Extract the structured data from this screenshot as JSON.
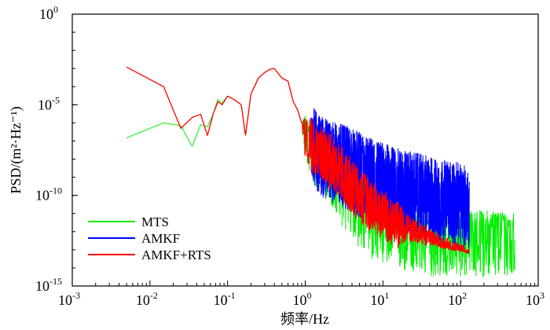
{
  "chart_data": {
    "type": "line",
    "title": "",
    "xlabel": "频率/Hz",
    "ylabel": "PSD/(m²·Hz⁻¹)",
    "xscale": "log",
    "yscale": "log",
    "xlim": [
      0.001,
      1000
    ],
    "ylim": [
      1e-15,
      1
    ],
    "x_ticks": [
      {
        "value": 0.001,
        "base": "10",
        "exp": "-3"
      },
      {
        "value": 0.01,
        "base": "10",
        "exp": "-2"
      },
      {
        "value": 0.1,
        "base": "10",
        "exp": "-1"
      },
      {
        "value": 1,
        "base": "10",
        "exp": "0"
      },
      {
        "value": 10,
        "base": "10",
        "exp": "1"
      },
      {
        "value": 100,
        "base": "10",
        "exp": "2"
      },
      {
        "value": 1000,
        "base": "10",
        "exp": "3"
      }
    ],
    "y_ticks": [
      {
        "value": 1e-15,
        "base": "10",
        "exp": "-15"
      },
      {
        "value": 1e-10,
        "base": "10",
        "exp": "-10"
      },
      {
        "value": 1e-05,
        "base": "10",
        "exp": "-5"
      },
      {
        "value": 1,
        "base": "10",
        "exp": "0"
      }
    ],
    "legend_position": "bottom-left",
    "series": [
      {
        "name": "MTS",
        "color": "#00ee00",
        "x": [
          0.005,
          0.015,
          0.025,
          0.035,
          0.045,
          0.055,
          0.065,
          0.075,
          0.085,
          0.1,
          0.12,
          0.15,
          0.17,
          0.2,
          0.25,
          0.3,
          0.35,
          0.4,
          0.5,
          0.6,
          0.7,
          0.8,
          0.9,
          1.0,
          1.2,
          1.5,
          2,
          3,
          4,
          5,
          7,
          10,
          15,
          20,
          30,
          50,
          70,
          100,
          150,
          200,
          300,
          400,
          500
        ],
        "mid": [
          1.5e-07,
          1e-06,
          7e-07,
          5e-08,
          8e-07,
          6e-07,
          3e-06,
          2e-05,
          1.2e-05,
          3e-05,
          2e-05,
          1e-05,
          2e-07,
          4e-05,
          0.0003,
          0.0006,
          0.0009,
          0.001,
          0.0003,
          0.0002,
          1.5e-05,
          5e-06,
          1e-06,
          4e-07,
          1.5e-07,
          4e-08,
          1e-08,
          1.5e-09,
          3e-10,
          1e-10,
          3e-11,
          1e-11,
          4e-12,
          2.5e-12,
          2e-12,
          1.8e-12,
          1.8e-12,
          1.8e-12,
          1.8e-12,
          1.8e-12,
          1.8e-12,
          1.8e-12,
          1.8e-12
        ],
        "low": [
          1.5e-07,
          1e-06,
          7e-07,
          5e-08,
          8e-07,
          6e-07,
          3e-06,
          2e-05,
          1.2e-05,
          3e-05,
          2e-05,
          1e-05,
          2e-07,
          4e-05,
          0.0003,
          0.0006,
          0.0009,
          0.001,
          0.0003,
          0.0002,
          1.5e-05,
          5e-06,
          1e-06,
          1e-08,
          1e-09,
          1e-10,
          5e-11,
          2e-12,
          5e-13,
          1e-13,
          3e-14,
          2e-14,
          8e-15,
          5e-15,
          4e-15,
          3e-15,
          3e-15,
          3e-15,
          3e-15,
          3e-15,
          3e-15,
          3e-15,
          3e-15
        ],
        "high": [
          1.5e-07,
          1e-06,
          7e-07,
          5e-08,
          8e-07,
          6e-07,
          3e-06,
          2e-05,
          1.2e-05,
          3e-05,
          2e-05,
          1e-05,
          2e-07,
          4e-05,
          0.0003,
          0.0006,
          0.0009,
          0.001,
          0.0003,
          0.0002,
          1.5e-05,
          5e-06,
          1e-06,
          3e-06,
          1e-06,
          5e-07,
          1e-07,
          2e-08,
          5e-09,
          1e-09,
          4e-10,
          1e-10,
          5e-11,
          3e-11,
          2e-11,
          1.5e-11,
          1.5e-11,
          1.5e-11,
          1.5e-11,
          1.5e-11,
          1.5e-11,
          1.2e-11,
          1.2e-11
        ]
      },
      {
        "name": "AMKF",
        "color": "#0000ff",
        "x": [
          1.2,
          1.5,
          2,
          3,
          4,
          5,
          7,
          10,
          15,
          20,
          30,
          50,
          70,
          100,
          130
        ],
        "mid": [
          4e-07,
          1e-07,
          5e-08,
          2e-08,
          1e-08,
          6e-09,
          3e-09,
          1.5e-09,
          8e-10,
          5e-10,
          3e-10,
          1.5e-10,
          1e-10,
          8e-11,
          6e-11
        ],
        "low": [
          1e-09,
          1e-10,
          5e-11,
          2e-11,
          1e-11,
          6e-12,
          3e-12,
          2e-12,
          1e-12,
          8e-13,
          5e-13,
          3e-13,
          2e-13,
          1.5e-13,
          1e-13
        ],
        "high": [
          1e-05,
          3e-06,
          1.5e-06,
          8e-07,
          5e-07,
          3e-07,
          1.5e-07,
          8e-08,
          4e-08,
          3e-08,
          2e-08,
          1e-08,
          8e-09,
          6e-09,
          3e-09
        ]
      },
      {
        "name": "AMKF+RTS",
        "color": "#ff0000",
        "x": [
          0.005,
          0.015,
          0.025,
          0.035,
          0.045,
          0.055,
          0.065,
          0.075,
          0.085,
          0.1,
          0.12,
          0.15,
          0.17,
          0.2,
          0.25,
          0.3,
          0.35,
          0.4,
          0.5,
          0.6,
          0.7,
          0.8,
          0.9,
          1.0,
          1.2,
          1.5,
          2,
          3,
          4,
          5,
          7,
          10,
          15,
          20,
          30,
          50,
          70,
          100,
          130
        ],
        "mid": [
          0.0012,
          0.0001,
          5e-07,
          2e-06,
          3e-06,
          2e-07,
          3e-06,
          1.5e-05,
          1e-05,
          3e-05,
          2e-05,
          1e-05,
          2e-07,
          4e-05,
          0.0003,
          0.0006,
          0.0009,
          0.001,
          0.0003,
          0.0002,
          1.5e-05,
          5e-06,
          1e-06,
          3e-07,
          1e-07,
          3e-08,
          8e-09,
          1.5e-09,
          3e-10,
          1e-10,
          3e-11,
          1e-11,
          4e-12,
          1.5e-12,
          7e-13,
          3e-13,
          1.8e-13,
          1e-13,
          8e-14
        ],
        "low": [
          0.0012,
          0.0001,
          5e-07,
          2e-06,
          3e-06,
          2e-07,
          3e-06,
          1.5e-05,
          1e-05,
          3e-05,
          2e-05,
          1e-05,
          2e-07,
          4e-05,
          0.0003,
          0.0006,
          0.0009,
          0.001,
          0.0003,
          0.0002,
          1.5e-05,
          5e-06,
          1e-06,
          1e-08,
          2e-09,
          1e-09,
          2e-10,
          5e-11,
          1e-11,
          3e-12,
          1e-12,
          5e-13,
          1e-13,
          3e-13,
          2e-13,
          1.5e-13,
          1e-13,
          8e-14,
          6e-14
        ],
        "high": [
          0.0012,
          0.0001,
          5e-07,
          2e-06,
          3e-06,
          2e-07,
          3e-06,
          1.5e-05,
          1e-05,
          3e-05,
          2e-05,
          1e-05,
          2e-07,
          4e-05,
          0.0003,
          0.0006,
          0.0009,
          0.001,
          0.0003,
          0.0002,
          1.5e-05,
          5e-06,
          1e-06,
          3e-06,
          2e-06,
          8e-07,
          3e-07,
          5e-08,
          1e-08,
          3e-09,
          8e-10,
          2e-10,
          5e-11,
          1e-11,
          3e-12,
          8e-13,
          4e-13,
          2e-13,
          1.2e-13
        ]
      }
    ]
  }
}
